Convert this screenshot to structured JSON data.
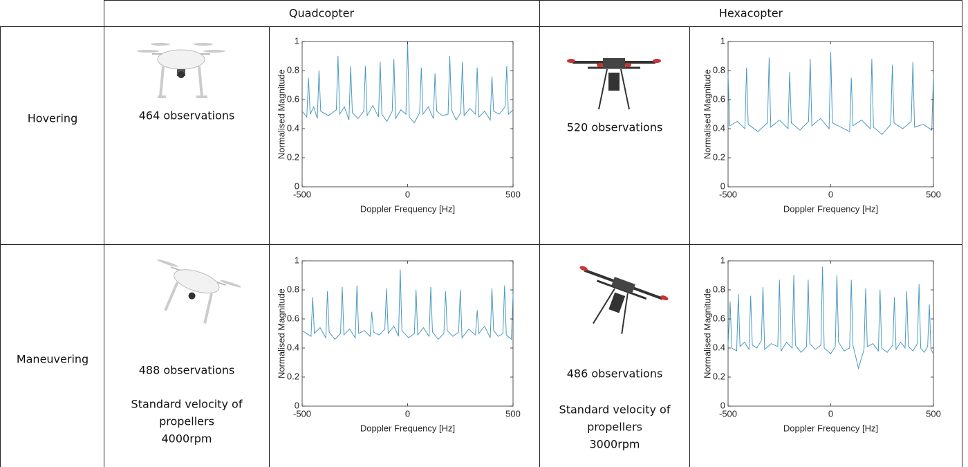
{
  "table": {
    "header": {
      "quadcopter": "Quadcopter",
      "hexacopter": "Hexacopter"
    },
    "rows": [
      {
        "label": "Hovering",
        "quadcopter": {
          "observations": "464 observations"
        },
        "hexacopter": {
          "observations": "520 observations"
        }
      },
      {
        "label": "Maneuvering",
        "quadcopter": {
          "observations": "488 observations",
          "notes": [
            "Standard velocity of",
            "propellers",
            "4000rpm"
          ]
        },
        "hexacopter": {
          "observations": "486 observations",
          "notes": [
            "Standard velocity of",
            "propellers",
            "3000rpm"
          ]
        }
      }
    ]
  },
  "chart_data": [
    {
      "type": "line",
      "xlabel": "Doppler Frequency [Hz]",
      "ylabel": "Normalised Magnitude",
      "color": "#4b9ac0",
      "xlim": [
        -500,
        500
      ],
      "ylim": [
        0,
        1
      ],
      "xticks": [
        -500,
        0,
        500
      ],
      "yticks": [
        0,
        0.2,
        0.4,
        0.6,
        0.8,
        1
      ],
      "x": [
        -500,
        -478,
        -470,
        -462,
        -445,
        -428,
        -420,
        -412,
        -375,
        -338,
        -330,
        -322,
        -300,
        -278,
        -270,
        -262,
        -235,
        -208,
        -200,
        -192,
        -165,
        -138,
        -130,
        -122,
        -98,
        -73,
        -65,
        -57,
        -32,
        -8,
        0,
        8,
        32,
        57,
        65,
        73,
        98,
        122,
        130,
        138,
        165,
        192,
        200,
        208,
        230,
        252,
        260,
        268,
        295,
        322,
        330,
        338,
        365,
        392,
        400,
        408,
        435,
        462,
        470,
        478,
        500
      ],
      "values": [
        0.52,
        0.48,
        0.75,
        0.5,
        0.55,
        0.47,
        0.8,
        0.52,
        0.49,
        0.53,
        0.9,
        0.5,
        0.55,
        0.46,
        0.83,
        0.51,
        0.47,
        0.52,
        0.83,
        0.49,
        0.56,
        0.48,
        0.86,
        0.5,
        0.45,
        0.52,
        0.88,
        0.47,
        0.53,
        0.5,
        1.0,
        0.48,
        0.44,
        0.51,
        0.82,
        0.5,
        0.55,
        0.47,
        0.78,
        0.52,
        0.49,
        0.5,
        0.9,
        0.53,
        0.46,
        0.51,
        0.86,
        0.49,
        0.54,
        0.5,
        0.82,
        0.48,
        0.52,
        0.46,
        0.76,
        0.52,
        0.5,
        0.55,
        0.83,
        0.5,
        0.53
      ]
    },
    {
      "type": "line",
      "xlabel": "Doppler Frequency [Hz]",
      "ylabel": "Normalised Magnitude",
      "color": "#4b9ac0",
      "xlim": [
        -500,
        500
      ],
      "ylim": [
        0,
        1
      ],
      "xticks": [
        -500,
        0,
        500
      ],
      "yticks": [
        0,
        0.2,
        0.4,
        0.6,
        0.8,
        1
      ],
      "x": [
        -500,
        -492,
        -455,
        -418,
        -410,
        -402,
        -355,
        -308,
        -300,
        -292,
        -250,
        -208,
        -200,
        -192,
        -150,
        -108,
        -100,
        -92,
        -50,
        -8,
        0,
        8,
        50,
        92,
        100,
        108,
        150,
        192,
        200,
        208,
        250,
        292,
        300,
        308,
        350,
        392,
        400,
        408,
        450,
        492,
        500
      ],
      "values": [
        0.77,
        0.42,
        0.45,
        0.4,
        0.82,
        0.43,
        0.38,
        0.44,
        0.89,
        0.41,
        0.46,
        0.4,
        0.79,
        0.44,
        0.39,
        0.45,
        0.88,
        0.42,
        0.47,
        0.4,
        0.93,
        0.44,
        0.41,
        0.38,
        0.75,
        0.42,
        0.46,
        0.4,
        0.88,
        0.41,
        0.36,
        0.43,
        0.84,
        0.44,
        0.4,
        0.45,
        0.86,
        0.41,
        0.43,
        0.39,
        0.77
      ]
    },
    {
      "type": "line",
      "xlabel": "Doppler Frequency [Hz]",
      "ylabel": "Normalised Magnitude",
      "color": "#4b9ac0",
      "xlim": [
        -500,
        500
      ],
      "ylim": [
        0,
        1
      ],
      "xticks": [
        -500,
        0,
        500
      ],
      "yticks": [
        0,
        0.2,
        0.4,
        0.6,
        0.8,
        1
      ],
      "x": [
        -500,
        -458,
        -450,
        -442,
        -415,
        -388,
        -380,
        -372,
        -345,
        -318,
        -310,
        -302,
        -275,
        -248,
        -240,
        -232,
        -205,
        -178,
        -170,
        -162,
        -135,
        -108,
        -100,
        -92,
        -65,
        -43,
        -35,
        -27,
        5,
        32,
        40,
        48,
        75,
        102,
        110,
        118,
        145,
        172,
        180,
        188,
        215,
        242,
        250,
        258,
        290,
        322,
        330,
        338,
        365,
        392,
        400,
        408,
        430,
        452,
        460,
        468,
        492,
        500
      ],
      "values": [
        0.52,
        0.48,
        0.75,
        0.5,
        0.54,
        0.47,
        0.79,
        0.51,
        0.46,
        0.5,
        0.82,
        0.49,
        0.53,
        0.47,
        0.83,
        0.5,
        0.52,
        0.48,
        0.65,
        0.51,
        0.49,
        0.53,
        0.81,
        0.5,
        0.55,
        0.48,
        0.94,
        0.52,
        0.47,
        0.5,
        0.8,
        0.49,
        0.54,
        0.48,
        0.82,
        0.51,
        0.46,
        0.5,
        0.79,
        0.52,
        0.48,
        0.51,
        0.8,
        0.47,
        0.53,
        0.49,
        0.66,
        0.5,
        0.55,
        0.47,
        0.81,
        0.52,
        0.48,
        0.5,
        0.83,
        0.49,
        0.46,
        0.77
      ]
    },
    {
      "type": "line",
      "xlabel": "Doppler Frequency [Hz]",
      "ylabel": "Normalised Magnitude",
      "color": "#4b9ac0",
      "xlim": [
        -500,
        500
      ],
      "ylim": [
        0,
        1
      ],
      "xticks": [
        -500,
        0,
        500
      ],
      "yticks": [
        0,
        0.2,
        0.4,
        0.6,
        0.8,
        1
      ],
      "x": [
        -500,
        -490,
        -482,
        -458,
        -450,
        -442,
        -420,
        -398,
        -390,
        -382,
        -360,
        -338,
        -330,
        -322,
        -290,
        -258,
        -250,
        -242,
        -215,
        -188,
        -180,
        -172,
        -145,
        -118,
        -110,
        -102,
        -75,
        -48,
        -40,
        -32,
        0,
        22,
        30,
        38,
        65,
        92,
        100,
        108,
        135,
        162,
        170,
        178,
        205,
        232,
        240,
        248,
        275,
        302,
        310,
        318,
        340,
        362,
        370,
        378,
        400,
        422,
        430,
        438,
        455,
        472,
        480,
        488,
        500
      ],
      "values": [
        0.42,
        0.72,
        0.4,
        0.38,
        0.77,
        0.41,
        0.44,
        0.39,
        0.76,
        0.42,
        0.4,
        0.45,
        0.82,
        0.39,
        0.43,
        0.41,
        0.87,
        0.38,
        0.44,
        0.4,
        0.9,
        0.42,
        0.37,
        0.41,
        0.87,
        0.43,
        0.39,
        0.42,
        0.96,
        0.4,
        0.36,
        0.41,
        0.9,
        0.44,
        0.38,
        0.4,
        0.87,
        0.42,
        0.26,
        0.39,
        0.81,
        0.41,
        0.43,
        0.38,
        0.8,
        0.4,
        0.37,
        0.42,
        0.75,
        0.39,
        0.44,
        0.4,
        0.79,
        0.41,
        0.38,
        0.43,
        0.84,
        0.4,
        0.37,
        0.41,
        0.7,
        0.39,
        0.36
      ]
    }
  ]
}
